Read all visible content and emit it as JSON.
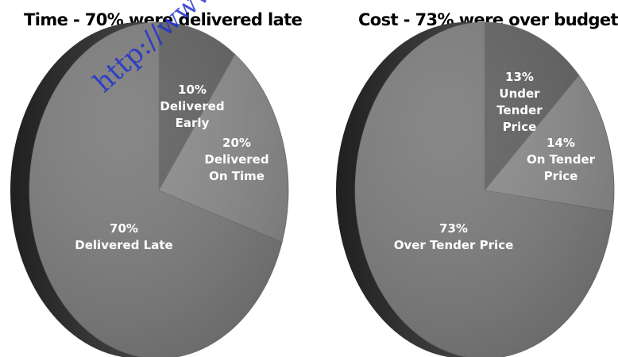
{
  "watermark": "http://www.",
  "chart_data": [
    {
      "type": "pie",
      "title": "Time - 70% were delivered late",
      "slices": [
        {
          "label_lines": [
            "10%",
            "Delivered",
            "Early"
          ],
          "value": 10
        },
        {
          "label_lines": [
            "20%",
            "Delivered",
            "On Time"
          ],
          "value": 20
        },
        {
          "label_lines": [
            "70%",
            "Delivered Late"
          ],
          "value": 70
        }
      ]
    },
    {
      "type": "pie",
      "title": "Cost - 73% were over budget",
      "slices": [
        {
          "label_lines": [
            "13%",
            "Under",
            "Tender",
            "Price"
          ],
          "value": 13
        },
        {
          "label_lines": [
            "14%",
            "On Tender",
            "Price"
          ],
          "value": 14
        },
        {
          "label_lines": [
            "73%",
            "Over Tender Price"
          ],
          "value": 73
        }
      ]
    }
  ],
  "colors": {
    "slice_dark": "#5f5f5f",
    "slice_mid": "#8a8a8a",
    "slice_large": "#7a7a7a",
    "rim": "#3c3c3c"
  }
}
